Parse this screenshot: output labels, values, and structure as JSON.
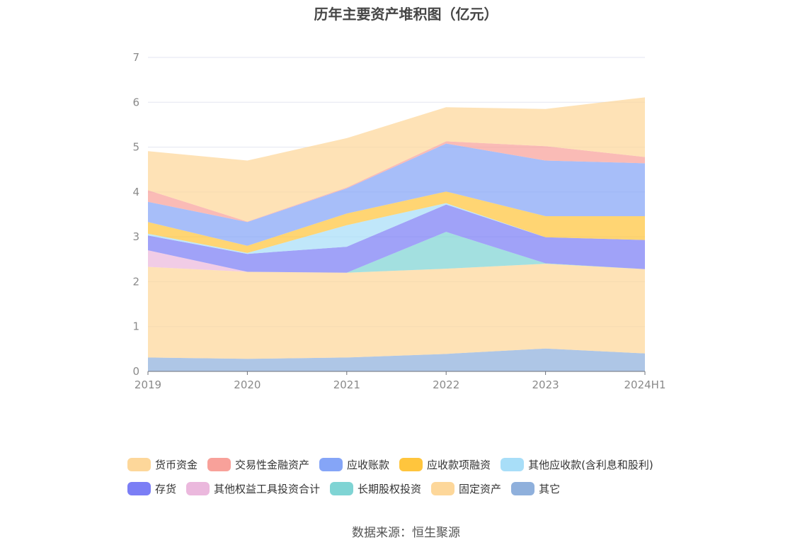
{
  "chart_data": {
    "type": "area",
    "title": "历年主要资产堆积图（亿元）",
    "source": "数据来源：恒生聚源",
    "x": [
      "2019",
      "2020",
      "2021",
      "2022",
      "2023",
      "2024H1"
    ],
    "ylim": [
      0,
      7
    ],
    "yticks": [
      "0",
      "1",
      "2",
      "3",
      "4",
      "5",
      "6",
      "7"
    ],
    "stacked": true,
    "grid": true,
    "legend_position": "bottom",
    "series": [
      {
        "name": "其它",
        "color": "#8fb0dc",
        "values": [
          0.31,
          0.28,
          0.31,
          0.39,
          0.51,
          0.4
        ]
      },
      {
        "name": "固定资产",
        "color": "#fdd79a",
        "values": [
          2.02,
          1.94,
          1.89,
          1.9,
          1.89,
          1.88
        ]
      },
      {
        "name": "长期股权投资",
        "color": "#7fd4d4",
        "values": [
          0,
          0,
          0,
          0.82,
          0.01,
          0
        ]
      },
      {
        "name": "其他权益工具投资合计",
        "color": "#ebb8dd",
        "values": [
          0.37,
          0,
          0,
          0,
          0,
          0
        ]
      },
      {
        "name": "存货",
        "color": "#7b7ef5",
        "values": [
          0.33,
          0.4,
          0.58,
          0.61,
          0.58,
          0.65
        ]
      },
      {
        "name": "其他应收款(含利息和股利)",
        "color": "#a8def8",
        "values": [
          0.04,
          0.02,
          0.48,
          0.03,
          0,
          0
        ]
      },
      {
        "name": "应收款项融资",
        "color": "#ffc53d",
        "values": [
          0.26,
          0.16,
          0.26,
          0.26,
          0.47,
          0.53
        ]
      },
      {
        "name": "应收账款",
        "color": "#85a5f7",
        "values": [
          0.45,
          0.53,
          0.56,
          1.07,
          1.24,
          1.18
        ]
      },
      {
        "name": "交易性金融资产",
        "color": "#f8a19a",
        "values": [
          0.26,
          0.01,
          0.02,
          0.05,
          0.32,
          0.14
        ]
      },
      {
        "name": "货币资金",
        "color": "#fdd79a",
        "values": [
          0.87,
          1.36,
          1.1,
          0.76,
          0.83,
          1.33
        ]
      }
    ],
    "legend_rows": [
      [
        "货币资金",
        "交易性金融资产",
        "应收账款",
        "应收款项融资",
        "其他应收款(含利息和股利)"
      ],
      [
        "存货",
        "其他权益工具投资合计",
        "长期股权投资",
        "固定资产",
        "其它"
      ]
    ]
  }
}
